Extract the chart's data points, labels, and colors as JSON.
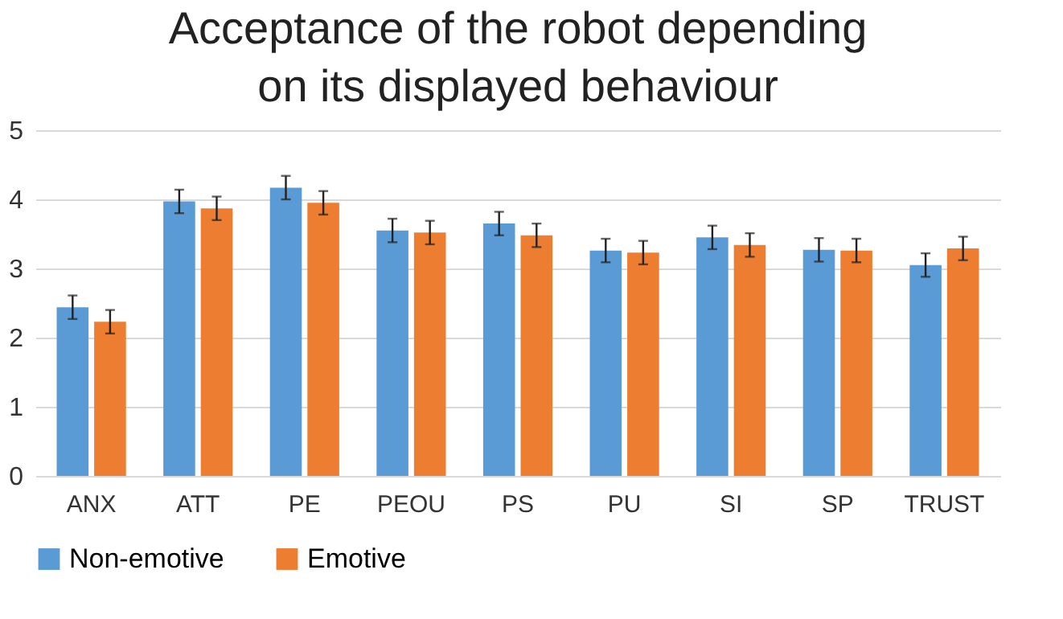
{
  "chart_data": {
    "type": "bar",
    "title": "Acceptance of the robot depending on its displayed behaviour",
    "categories": [
      "ANX",
      "ATT",
      "PE",
      "PEOU",
      "PS",
      "PU",
      "SI",
      "SP",
      "TRUST"
    ],
    "series": [
      {
        "name": "Non-emotive",
        "color": "#5b9bd5",
        "values": [
          2.44,
          3.97,
          4.17,
          3.55,
          3.65,
          3.26,
          3.45,
          3.27,
          3.05
        ],
        "errors": [
          0.17,
          0.17,
          0.17,
          0.17,
          0.17,
          0.17,
          0.17,
          0.17,
          0.17
        ]
      },
      {
        "name": "Emotive",
        "color": "#ed7d31",
        "values": [
          2.23,
          3.87,
          3.95,
          3.52,
          3.48,
          3.23,
          3.34,
          3.26,
          3.29
        ],
        "errors": [
          0.17,
          0.17,
          0.17,
          0.17,
          0.17,
          0.17,
          0.17,
          0.17,
          0.17
        ]
      }
    ],
    "ylim": [
      0,
      5
    ],
    "yticks": [
      0,
      1,
      2,
      3,
      4,
      5
    ],
    "grid": "y",
    "legend": "bottom"
  }
}
